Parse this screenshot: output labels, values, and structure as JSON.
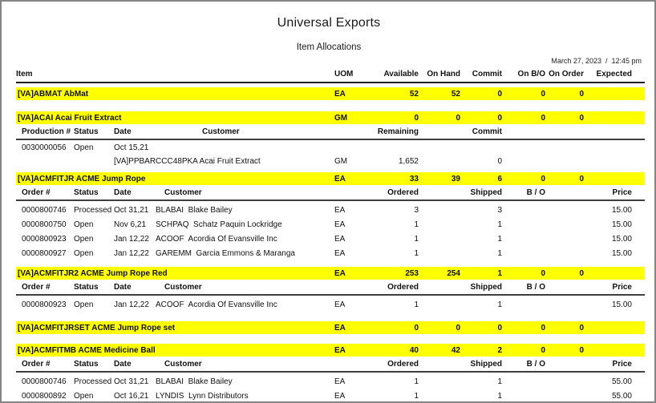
{
  "report": {
    "title": "Universal Exports",
    "subtitle": "Item Allocations",
    "printed": "March 27, 2023  /  12:45 pm",
    "main_header": {
      "item": "Item",
      "uom": "UOM",
      "available": "Available",
      "on_hand": "On Hand",
      "commit": "Commit",
      "on_bo": "On B/O",
      "on_order": "On Order",
      "expected": "Expected"
    },
    "order_header": {
      "order": "Order #",
      "status": "Status",
      "date": "Date",
      "customer": "Customer",
      "ordered": "Ordered",
      "shipped": "Shipped",
      "bo": "B / O",
      "price": "Price"
    },
    "production_header": {
      "production": "Production #",
      "status": "Status",
      "date": "Date",
      "customer": "Customer",
      "remaining": "Remaining",
      "commit": "Commit"
    },
    "sections": [
      {
        "name": "[VA]ABMAT AbMat",
        "uom": "EA",
        "available": "52",
        "on_hand": "52",
        "commit": "0",
        "on_bo": "0",
        "on_order": "0",
        "expected": ""
      },
      {
        "name": "[VA]ACAI Acai Fruit Extract",
        "uom": "GM",
        "available": "0",
        "on_hand": "0",
        "commit": "0",
        "on_bo": "0",
        "on_order": "0",
        "expected": "",
        "production_rows": [
          {
            "production": "0030000056",
            "status": "Open",
            "date": "Oct 15,21",
            "description": "[VA]PPBARCCC48PKA Acai Fruit Extract",
            "uom": "GM",
            "remaining": "1,652",
            "commit": "0"
          }
        ]
      },
      {
        "name": "[VA]ACMFITJR ACME Jump Rope",
        "uom": "EA",
        "available": "33",
        "on_hand": "39",
        "commit": "6",
        "on_bo": "0",
        "on_order": "0",
        "expected": "",
        "order_rows": [
          {
            "order": "0000800746",
            "status": "Processed",
            "date": "Oct 31,21",
            "customer": "BLABAI  Blake Bailey",
            "uom": "EA",
            "ordered": "3",
            "shipped": "3",
            "bo": "",
            "price": "15.00"
          },
          {
            "order": "0000800750",
            "status": "Open",
            "date": "Nov 6,21",
            "customer": "SCHPAQ  Schatz Paquin Lockridge",
            "uom": "EA",
            "ordered": "1",
            "shipped": "1",
            "bo": "",
            "price": "15.00"
          },
          {
            "order": "0000800923",
            "status": "Open",
            "date": "Jan 12,22",
            "customer": "ACOOF  Acordia Of Evansville Inc",
            "uom": "EA",
            "ordered": "1",
            "shipped": "1",
            "bo": "",
            "price": "15.00"
          },
          {
            "order": "0000800927",
            "status": "Open",
            "date": "Jan 12,22",
            "customer": "GAREMM  Garcia Emmons & Maranga",
            "uom": "EA",
            "ordered": "1",
            "shipped": "1",
            "bo": "",
            "price": "15.00"
          }
        ]
      },
      {
        "name": "[VA]ACMFITJR2 ACME Jump Rope Red",
        "uom": "EA",
        "available": "253",
        "on_hand": "254",
        "commit": "1",
        "on_bo": "0",
        "on_order": "0",
        "expected": "",
        "order_rows": [
          {
            "order": "0000800923",
            "status": "Open",
            "date": "Jan 12,22",
            "customer": "ACOOF  Acordia Of Evansville Inc",
            "uom": "EA",
            "ordered": "1",
            "shipped": "1",
            "bo": "",
            "price": "15.00"
          }
        ]
      },
      {
        "name": "[VA]ACMFITJRSET ACME Jump Rope set",
        "uom": "EA",
        "available": "0",
        "on_hand": "0",
        "commit": "0",
        "on_bo": "0",
        "on_order": "0",
        "expected": ""
      },
      {
        "name": "[VA]ACMFITMB ACME Medicine Ball",
        "uom": "EA",
        "available": "40",
        "on_hand": "42",
        "commit": "2",
        "on_bo": "0",
        "on_order": "0",
        "expected": "",
        "order_rows": [
          {
            "order": "0000800746",
            "status": "Processed",
            "date": "Oct 31,21",
            "customer": "BLABAI  Blake Bailey",
            "uom": "EA",
            "ordered": "1",
            "shipped": "1",
            "bo": "",
            "price": "55.00"
          },
          {
            "order": "0000800892",
            "status": "Open",
            "date": "Oct 16,21",
            "customer": "LYNDIS  Lynn Distributors",
            "uom": "EA",
            "ordered": "1",
            "shipped": "1",
            "bo": "",
            "price": "55.00"
          }
        ]
      }
    ]
  }
}
